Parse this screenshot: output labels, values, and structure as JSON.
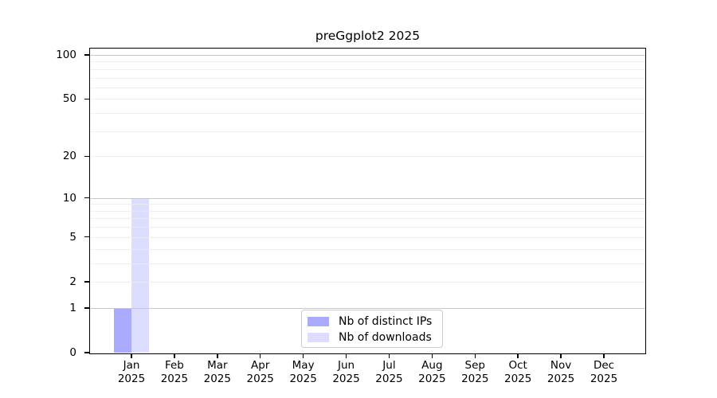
{
  "title": "preGgplot2 2025",
  "chart_data": {
    "type": "bar",
    "title": "preGgplot2 2025",
    "categories": [
      "Jan",
      "Feb",
      "Mar",
      "Apr",
      "May",
      "Jun",
      "Jul",
      "Aug",
      "Sep",
      "Oct",
      "Nov",
      "Dec"
    ],
    "x_year_label": "2025",
    "series": [
      {
        "name": "Nb of distinct IPs",
        "color": "#aaaaff",
        "values": [
          1,
          0,
          0,
          0,
          0,
          0,
          0,
          0,
          0,
          0,
          0,
          0
        ]
      },
      {
        "name": "Nb of downloads",
        "color": "#ddddff",
        "values": [
          10,
          0,
          0,
          0,
          0,
          0,
          0,
          0,
          0,
          0,
          0,
          0
        ]
      }
    ],
    "xlabel": "",
    "ylabel": "",
    "yscale": "log1p",
    "ylim": [
      0,
      110.5
    ],
    "y_ticks": [
      0,
      1,
      2,
      5,
      10,
      20,
      50,
      100
    ],
    "grid_major": [
      1,
      10,
      100
    ],
    "grid_minor": [
      2,
      3,
      4,
      5,
      6,
      7,
      8,
      9,
      20,
      30,
      40,
      50,
      60,
      70,
      80,
      90
    ],
    "grid_major_color": "#c8c8c8",
    "grid_minor_color": "#ececec",
    "legend_position": "bottom-center",
    "legend_entries": [
      "Nb of distinct IPs",
      "Nb of downloads"
    ]
  }
}
